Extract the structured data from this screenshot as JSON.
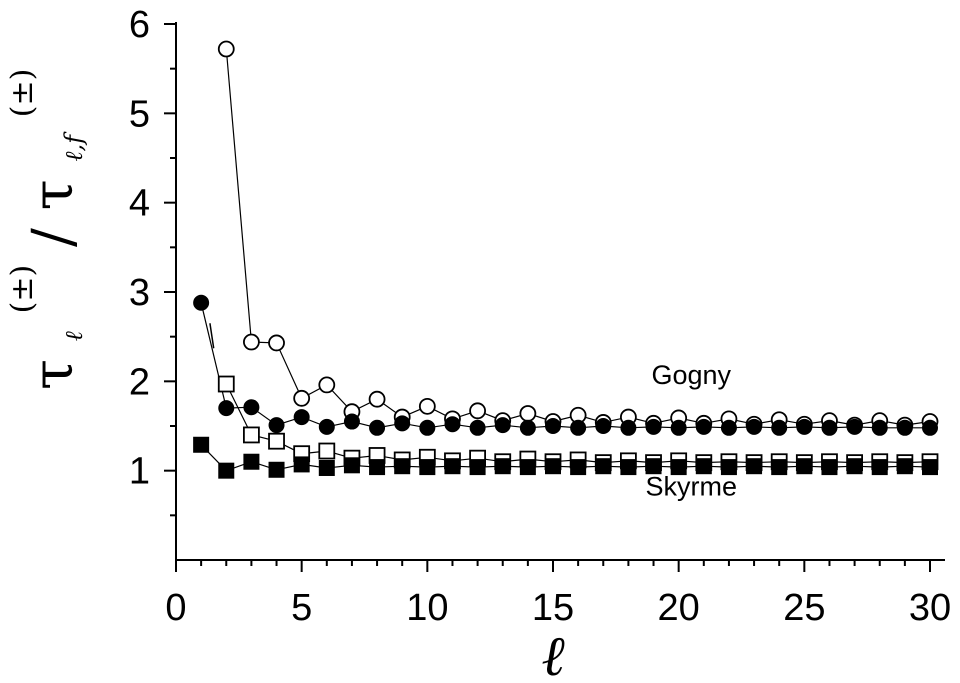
{
  "chart_data": {
    "type": "scatter",
    "title": "",
    "xlabel": "ℓ",
    "ylabel": "τ_ℓ^(±)/τ_{ℓ,f}^(±)",
    "ylabel_parts": {
      "tau": "τ",
      "sub1": "ℓ",
      "sup": "(±)",
      "slash": "/",
      "sub2": "ℓ,f"
    },
    "xlim": [
      0,
      30
    ],
    "ylim": [
      0,
      6
    ],
    "x_ticks": [
      0,
      5,
      10,
      15,
      20,
      25,
      30
    ],
    "y_ticks": [
      1,
      2,
      3,
      4,
      5,
      6
    ],
    "x_tick_labels": [
      "0",
      "5",
      "10",
      "15",
      "20",
      "25",
      "30"
    ],
    "y_tick_labels": [
      "1",
      "2",
      "3",
      "4",
      "5",
      "6"
    ],
    "grid": false,
    "annotations": [
      {
        "text": "Gogny",
        "x": 20.5,
        "y": 1.97
      },
      {
        "text": "Skyrme",
        "x": 20.5,
        "y": 0.72
      }
    ],
    "series": [
      {
        "marker": "open-circle",
        "x": [
          2,
          3,
          4,
          5,
          6,
          7,
          8,
          9,
          10,
          11,
          12,
          13,
          14,
          15,
          16,
          17,
          18,
          19,
          20,
          21,
          22,
          23,
          24,
          25,
          26,
          27,
          28,
          29,
          30
        ],
        "y": [
          5.72,
          2.44,
          2.43,
          1.81,
          1.96,
          1.66,
          1.8,
          1.6,
          1.72,
          1.58,
          1.67,
          1.56,
          1.64,
          1.55,
          1.62,
          1.54,
          1.6,
          1.53,
          1.59,
          1.53,
          1.58,
          1.52,
          1.57,
          1.52,
          1.56,
          1.51,
          1.56,
          1.51,
          1.55
        ]
      },
      {
        "marker": "filled-circle",
        "x": [
          1,
          2,
          3,
          4,
          5,
          6,
          7,
          8,
          9,
          10,
          11,
          12,
          13,
          14,
          15,
          16,
          17,
          18,
          19,
          20,
          21,
          22,
          23,
          24,
          25,
          26,
          27,
          28,
          29,
          30
        ],
        "y": [
          2.88,
          1.7,
          1.71,
          1.51,
          1.6,
          1.49,
          1.55,
          1.48,
          1.53,
          1.48,
          1.52,
          1.48,
          1.51,
          1.48,
          1.5,
          1.48,
          1.5,
          1.48,
          1.49,
          1.48,
          1.49,
          1.48,
          1.49,
          1.48,
          1.49,
          1.48,
          1.49,
          1.48,
          1.48,
          1.48
        ]
      },
      {
        "marker": "open-square",
        "x": [
          2,
          3,
          4,
          5,
          6,
          7,
          8,
          9,
          10,
          11,
          12,
          13,
          14,
          15,
          16,
          17,
          18,
          19,
          20,
          21,
          22,
          23,
          24,
          25,
          26,
          27,
          28,
          29,
          30
        ],
        "y": [
          1.97,
          1.4,
          1.33,
          1.19,
          1.22,
          1.14,
          1.17,
          1.12,
          1.15,
          1.11,
          1.14,
          1.1,
          1.13,
          1.1,
          1.12,
          1.09,
          1.11,
          1.09,
          1.11,
          1.09,
          1.1,
          1.09,
          1.1,
          1.09,
          1.1,
          1.09,
          1.1,
          1.09,
          1.1
        ]
      },
      {
        "marker": "filled-square",
        "x": [
          1,
          2,
          3,
          4,
          5,
          6,
          7,
          8,
          9,
          10,
          11,
          12,
          13,
          14,
          15,
          16,
          17,
          18,
          19,
          20,
          21,
          22,
          23,
          24,
          25,
          26,
          27,
          28,
          29,
          30
        ],
        "y": [
          1.29,
          1.0,
          1.1,
          1.01,
          1.07,
          1.03,
          1.06,
          1.04,
          1.05,
          1.04,
          1.05,
          1.04,
          1.05,
          1.04,
          1.05,
          1.04,
          1.05,
          1.04,
          1.05,
          1.04,
          1.05,
          1.04,
          1.05,
          1.04,
          1.05,
          1.04,
          1.05,
          1.04,
          1.05,
          1.04
        ]
      }
    ],
    "extra_segment": {
      "x": [
        1.35,
        1.5
      ],
      "y": [
        2.65,
        2.37
      ]
    }
  }
}
